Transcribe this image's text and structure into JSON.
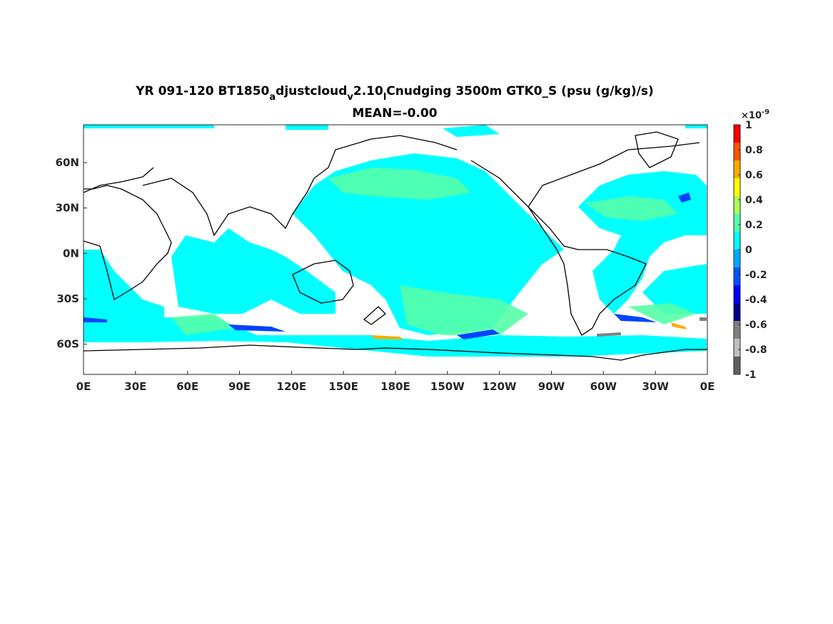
{
  "title": {
    "prefix": "YR 091-120 BT1850",
    "sub1": "a",
    "part2": "djustcloud",
    "sub2": "v",
    "part3": "2.10",
    "sub3": "l",
    "suffix": "Cnudging 3500m GTK0_S (psu (g/kg)/s)",
    "mean": "MEAN=-0.00"
  },
  "map": {
    "lon_ticks": [
      "0E",
      "30E",
      "60E",
      "90E",
      "120E",
      "150E",
      "180E",
      "150W",
      "120W",
      "90W",
      "60W",
      "30W",
      "0E"
    ],
    "lat_ticks": [
      "60N",
      "30N",
      "0N",
      "30S",
      "60S"
    ],
    "lon_range": [
      0,
      360
    ],
    "lat_range": [
      -80,
      85
    ],
    "ocean_color": "#00ffff",
    "land_color": "#ffffff",
    "coast_color": "#000000"
  },
  "colorbar": {
    "exponent_base": "×10",
    "exponent": "-9",
    "ticks": [
      "1",
      "0.8",
      "0.6",
      "0.4",
      "0.2",
      "0",
      "-0.2",
      "-0.4",
      "-0.6",
      "-0.8",
      "-1"
    ],
    "colors": [
      "#ff0000",
      "#ff5500",
      "#ffaa00",
      "#ffff00",
      "#aaff55",
      "#55ffaa",
      "#00ffff",
      "#00aaff",
      "#0055ff",
      "#0000ff",
      "#00008b",
      "#808080",
      "#c0c0c0",
      "#606060"
    ]
  }
}
